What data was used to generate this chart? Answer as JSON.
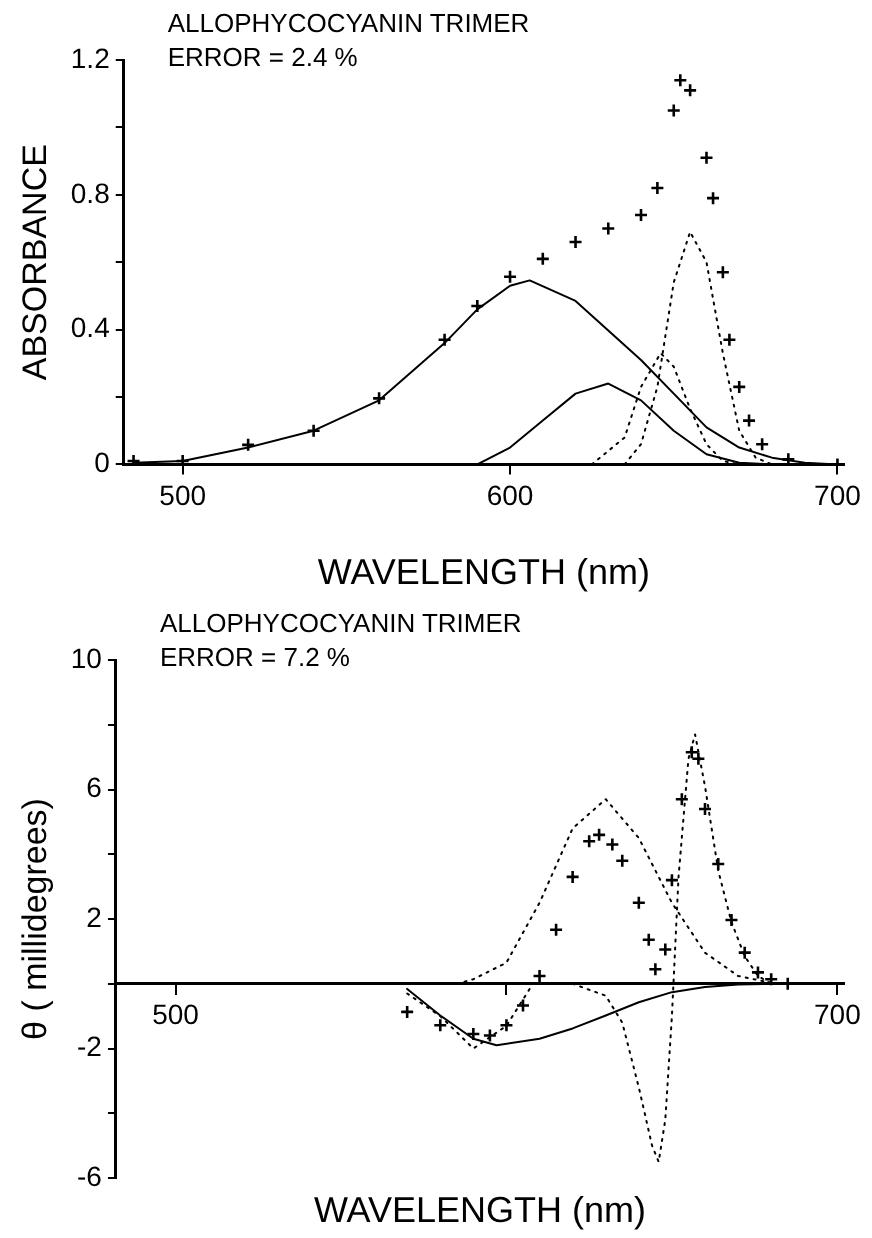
{
  "chart_data": [
    {
      "type": "line",
      "title": "ALLOPHYCOCYANIN TRIMER",
      "subtitle": "ERROR = 2.4 %",
      "xlabel": "WAVELENGTH (nm)",
      "ylabel": "ABSORBANCE",
      "xlim": [
        482,
        702
      ],
      "xticks": [
        500,
        600,
        700
      ],
      "ylim": [
        0,
        1.2
      ],
      "yticks": [
        0,
        {
          "value": 0.2,
          "label": null
        },
        0.4,
        {
          "value": 0.6,
          "label": null
        },
        0.8,
        {
          "value": 1.0,
          "label": null
        },
        1.2
      ],
      "grid": false,
      "legend": false,
      "series": [
        {
          "type": "scatter",
          "marker": "cross",
          "color": "#000000",
          "x": [
            485,
            500,
            520,
            540,
            560,
            580,
            590,
            600,
            610,
            620,
            630,
            640,
            645,
            650,
            652,
            655,
            660,
            662,
            665,
            667,
            670,
            673,
            677,
            685,
            700
          ],
          "values": [
            0.01,
            0.01,
            0.058,
            0.1,
            0.196,
            0.37,
            0.47,
            0.557,
            0.61,
            0.66,
            0.7,
            0.74,
            0.82,
            1.05,
            1.14,
            1.11,
            0.91,
            0.79,
            0.57,
            0.37,
            0.23,
            0.13,
            0.06,
            0.015,
            0
          ]
        },
        {
          "marker": "none",
          "line_style": "solid",
          "color": "#000000",
          "x": [
            485,
            500,
            520,
            540,
            560,
            580,
            590,
            600,
            606,
            620,
            640,
            650,
            660,
            670,
            680,
            690,
            700
          ],
          "values": [
            0.005,
            0.01,
            0.05,
            0.1,
            0.19,
            0.36,
            0.46,
            0.53,
            0.546,
            0.485,
            0.31,
            0.21,
            0.11,
            0.05,
            0.02,
            0.005,
            0
          ]
        },
        {
          "marker": "none",
          "line_style": "solid",
          "color": "#000000",
          "x": [
            590,
            600,
            610,
            620,
            630,
            640,
            650,
            660,
            670,
            680
          ],
          "values": [
            0,
            0.05,
            0.13,
            0.21,
            0.24,
            0.19,
            0.1,
            0.03,
            0.005,
            0
          ]
        },
        {
          "marker": "none",
          "line_style": "dotted",
          "color": "#000000",
          "x": [
            625,
            635,
            640,
            646,
            650,
            655,
            660,
            665,
            670
          ],
          "values": [
            0,
            0.08,
            0.23,
            0.33,
            0.29,
            0.165,
            0.06,
            0.01,
            0
          ]
        },
        {
          "marker": "none",
          "line_style": "dotted",
          "color": "#000000",
          "x": [
            635,
            640,
            645,
            650,
            655,
            660,
            665,
            670,
            675,
            680
          ],
          "values": [
            0,
            0.06,
            0.23,
            0.54,
            0.69,
            0.6,
            0.33,
            0.1,
            0.02,
            0
          ]
        }
      ]
    },
    {
      "type": "line",
      "title": "ALLOPHYCOCYANIN TRIMER",
      "subtitle": "ERROR = 7.2 %",
      "xlabel": "WAVELENGTH (nm)",
      "ylabel": "θ ( millidegrees)",
      "xlim": [
        482,
        702
      ],
      "xticks": [
        500,
        {
          "value": 600,
          "label": null
        },
        700
      ],
      "ylim": [
        -6,
        10
      ],
      "yticks": [
        -6,
        {
          "value": -4,
          "label": null
        },
        -2,
        {
          "value": 0,
          "label": null
        },
        2,
        {
          "value": 4,
          "label": null
        },
        6,
        {
          "value": 8,
          "label": null
        },
        10
      ],
      "grid": false,
      "legend": false,
      "series": [
        {
          "type": "scatter",
          "marker": "cross",
          "color": "#000000",
          "x": [
            570,
            580,
            590,
            595,
            600,
            605,
            610,
            615,
            620,
            625,
            628,
            632,
            635,
            640,
            643,
            645,
            648,
            650,
            653,
            656,
            658,
            660,
            664,
            668,
            672,
            676,
            680,
            685
          ],
          "values": [
            -0.87,
            -1.28,
            -1.55,
            -1.6,
            -1.28,
            -0.67,
            0.24,
            1.67,
            3.3,
            4.4,
            4.6,
            4.3,
            3.8,
            2.5,
            1.36,
            0.45,
            1.06,
            3.2,
            5.7,
            7.15,
            6.95,
            5.4,
            3.7,
            1.97,
            0.96,
            0.35,
            0.14,
            0
          ]
        },
        {
          "marker": "none",
          "line_style": "dotted",
          "color": "#000000",
          "x": [
            585,
            590,
            600,
            610,
            620,
            630,
            640,
            650,
            660,
            670,
            680
          ],
          "values": [
            0,
            0.14,
            0.65,
            2.5,
            4.8,
            5.7,
            4.5,
            2.5,
            0.96,
            0.24,
            0.03
          ]
        },
        {
          "marker": "none",
          "line_style": "solid",
          "color": "#000000",
          "x": [
            570,
            580,
            590,
            597,
            610,
            620,
            630,
            640,
            650,
            660,
            670,
            680
          ],
          "values": [
            -0.16,
            -0.98,
            -1.7,
            -1.9,
            -1.7,
            -1.38,
            -0.98,
            -0.57,
            -0.26,
            -0.1,
            -0.02,
            0
          ]
        },
        {
          "marker": "none",
          "line_style": "dotted",
          "color": "#000000",
          "x": [
            570,
            580,
            590,
            600,
            608
          ],
          "values": [
            -0.3,
            -1.0,
            -2.0,
            -1.3,
            0
          ]
        },
        {
          "marker": "none",
          "line_style": "dotted",
          "color": "#000000",
          "x": [
            620,
            630,
            635,
            640,
            644,
            646,
            648,
            650,
            652,
            655,
            657,
            660,
            664,
            668,
            672,
            676,
            680
          ],
          "values": [
            0,
            -0.37,
            -1.2,
            -3.2,
            -5.0,
            -5.5,
            -4.2,
            -1.0,
            3.3,
            6.95,
            7.7,
            6.1,
            3.5,
            1.9,
            0.85,
            0.24,
            0
          ]
        }
      ]
    }
  ]
}
